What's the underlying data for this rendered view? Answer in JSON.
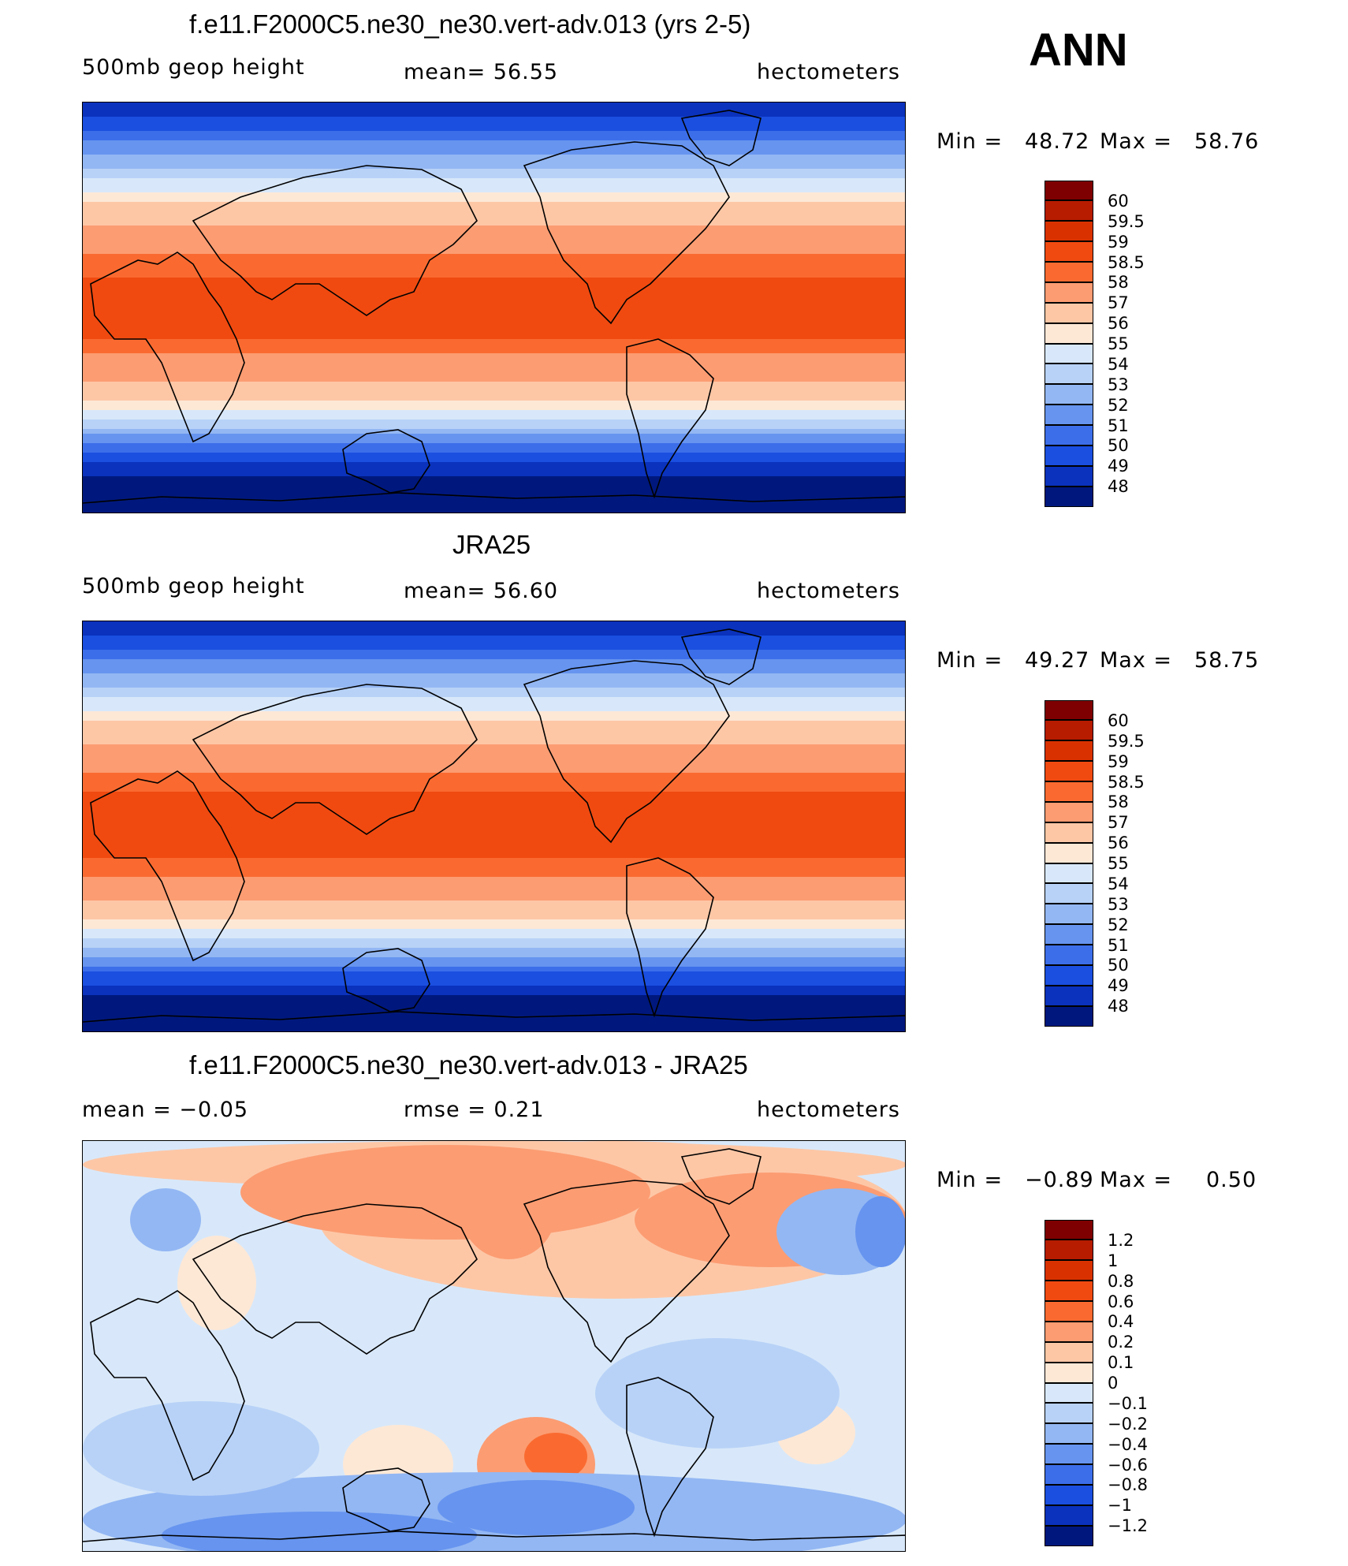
{
  "season": "ANN",
  "panels": [
    {
      "title": "f.e11.F2000C5.ne30_ne30.vert-adv.013 (yrs 2-5)",
      "left_label": "500mb geop height",
      "center_label": "mean=   56.55",
      "units": "hectometers",
      "min_label": "Min =",
      "min_value": "48.72",
      "max_label": "Max =",
      "max_value": "58.76",
      "field": "model"
    },
    {
      "title": "JRA25",
      "left_label": "500mb geop height",
      "center_label": "mean=   56.60",
      "units": "hectometers",
      "min_label": "Min =",
      "min_value": "49.27",
      "max_label": "Max =",
      "max_value": "58.75",
      "field": "obs"
    },
    {
      "title": "f.e11.F2000C5.ne30_ne30.vert-adv.013 - JRA25",
      "left_label": "mean =   −0.05",
      "center_label": "rmse =    0.21",
      "units": "hectometers",
      "min_label": "Min =",
      "min_value": "−0.89",
      "max_label": "Max =",
      "max_value": "0.50",
      "field": "diff"
    }
  ],
  "colorbars": {
    "absolute": {
      "labels": [
        "60",
        "59.5",
        "59",
        "58.5",
        "58",
        "57",
        "56",
        "55",
        "54",
        "53",
        "52",
        "51",
        "50",
        "49",
        "48"
      ],
      "colors": [
        "#7f0000",
        "#b71c00",
        "#d93200",
        "#f04a10",
        "#fa6a30",
        "#fc9c72",
        "#fdc7a6",
        "#fde8d6",
        "#d8e8fa",
        "#b8d2f7",
        "#93b7f3",
        "#6694ef",
        "#3c6eea",
        "#1a4fe0",
        "#0a32bd",
        "#00187d"
      ]
    },
    "difference": {
      "labels": [
        "1.2",
        "1",
        "0.8",
        "0.6",
        "0.4",
        "0.2",
        "0.1",
        "0",
        "−0.1",
        "−0.2",
        "−0.4",
        "−0.6",
        "−0.8",
        "−1",
        "−1.2"
      ],
      "colors": [
        "#7f0000",
        "#b71c00",
        "#d93200",
        "#f04a10",
        "#fa6a30",
        "#fc9c72",
        "#fdc7a6",
        "#fde8d6",
        "#d8e8fa",
        "#b8d2f7",
        "#93b7f3",
        "#6694ef",
        "#3c6eea",
        "#1a4fe0",
        "#0a32bd",
        "#00187d"
      ]
    }
  }
}
